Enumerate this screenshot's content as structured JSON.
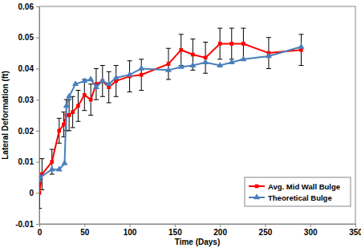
{
  "chart_data": {
    "type": "line",
    "x_label": "Time (Days)",
    "y_label": "Lateral Deformation (ft)",
    "xlim": [
      0,
      350
    ],
    "xticks": [
      0,
      50,
      100,
      150,
      200,
      250,
      300,
      350
    ],
    "ylim": [
      -0.01,
      0.06
    ],
    "yticks": [
      -0.01,
      0,
      0.01,
      0.02,
      0.03,
      0.04,
      0.05,
      0.06
    ],
    "grid": false,
    "legend": "lower right",
    "series": [
      {
        "name": "Avg. Mid Wall Bulge",
        "color": "#ff0000",
        "marker": "square",
        "x": [
          0,
          3,
          14,
          22,
          27,
          30,
          33,
          37,
          43,
          50,
          57,
          63,
          70,
          77,
          85,
          100,
          113,
          143,
          157,
          170,
          184,
          200,
          213,
          226,
          254,
          290
        ],
        "values": [
          0,
          0.006,
          0.01,
          0.02,
          0.022,
          0.025,
          0.025,
          0.026,
          0.028,
          0.0315,
          0.03,
          0.035,
          0.036,
          0.034,
          0.036,
          0.0375,
          0.038,
          0.0415,
          0.046,
          0.0445,
          0.0435,
          0.048,
          0.048,
          0.048,
          0.045,
          0.046
        ],
        "errors": [
          0.005,
          0.005,
          0.004,
          0.004,
          0.004,
          0.005,
          0.005,
          0.005,
          0.005,
          0.005,
          0.005,
          0.005,
          0.005,
          0.005,
          0.005,
          0.005,
          0.005,
          0.005,
          0.005,
          0.005,
          0.005,
          0.005,
          0.005,
          0.005,
          0.005,
          0.005
        ]
      },
      {
        "name": "Theoretical Bulge",
        "color": "#4a7ebb",
        "marker": "triangle",
        "x": [
          0,
          1,
          14,
          22,
          28,
          30,
          33,
          40,
          50,
          57,
          63,
          70,
          77,
          85,
          100,
          113,
          143,
          157,
          170,
          184,
          200,
          213,
          226,
          254,
          290
        ],
        "values": [
          0.004,
          0.005,
          0.0075,
          0.0075,
          0.0095,
          0.028,
          0.031,
          0.035,
          0.036,
          0.0365,
          0.034,
          0.036,
          0.035,
          0.037,
          0.038,
          0.04,
          0.0395,
          0.0405,
          0.041,
          0.042,
          0.041,
          0.042,
          0.043,
          0.044,
          0.047
        ]
      }
    ]
  }
}
